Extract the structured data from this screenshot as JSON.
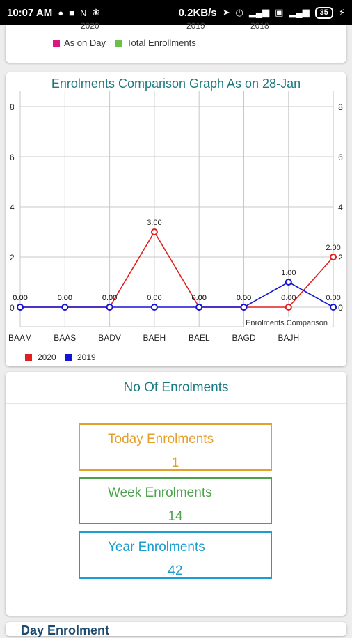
{
  "status_bar": {
    "time": "10:07 AM",
    "speed": "0.2KB/s",
    "battery": "35",
    "icons": [
      "messenger-icon",
      "notification-icon",
      "netflix-icon",
      "fan-icon",
      "location-icon",
      "alarm-icon",
      "signal-icon",
      "volte-icon",
      "wifi-signal-icon",
      "battery-icon",
      "charging-icon"
    ]
  },
  "prev_card": {
    "axis_cut": [
      "2020",
      "2019",
      "2018"
    ],
    "legend": [
      {
        "label": "As on Day",
        "color": "#e0157f"
      },
      {
        "label": "Total Enrollments",
        "color": "#6cc04a"
      }
    ]
  },
  "chart_card": {
    "title": "Enrolments Comparison Graph As on 28-Jan",
    "description": "Enrolments Comparison"
  },
  "chart_data": {
    "type": "line",
    "title": "Enrolments Comparison Graph As on 28-Jan",
    "categories": [
      "BAAM",
      "BAAS",
      "BADV",
      "BAEH",
      "BAEL",
      "BAGD",
      "BAJH",
      ""
    ],
    "ylim": [
      0,
      8
    ],
    "yticks": [
      0,
      2,
      4,
      6,
      8
    ],
    "grid": true,
    "legend_position": "bottom-left",
    "series": [
      {
        "name": "2020",
        "color": "#e02020",
        "values": [
          0,
          0,
          0,
          3,
          0,
          0,
          0,
          2
        ],
        "labels": [
          "0.00",
          "0.00",
          "0.00",
          "3.00",
          "0.00",
          "0.00",
          "0.00",
          "2.00"
        ]
      },
      {
        "name": "2019",
        "color": "#1414d6",
        "values": [
          0,
          0,
          0,
          0,
          0,
          0,
          1,
          0
        ],
        "labels": [
          "0.00",
          "0.00",
          "0.00",
          "0.00",
          "0.00",
          "0.00",
          "1.00",
          "0.00"
        ]
      }
    ]
  },
  "enrolments": {
    "title": "No Of Enrolments",
    "today": {
      "label": "Today Enrolments",
      "value": "1",
      "color": "#e3a12c"
    },
    "week": {
      "label": "Week Enrolments",
      "value": "14",
      "color": "#4ea24e"
    },
    "year": {
      "label": "Year Enrolments",
      "value": "42",
      "color": "#1c9dcf"
    }
  },
  "next_card": {
    "title_partial": "Day Enrolment"
  }
}
